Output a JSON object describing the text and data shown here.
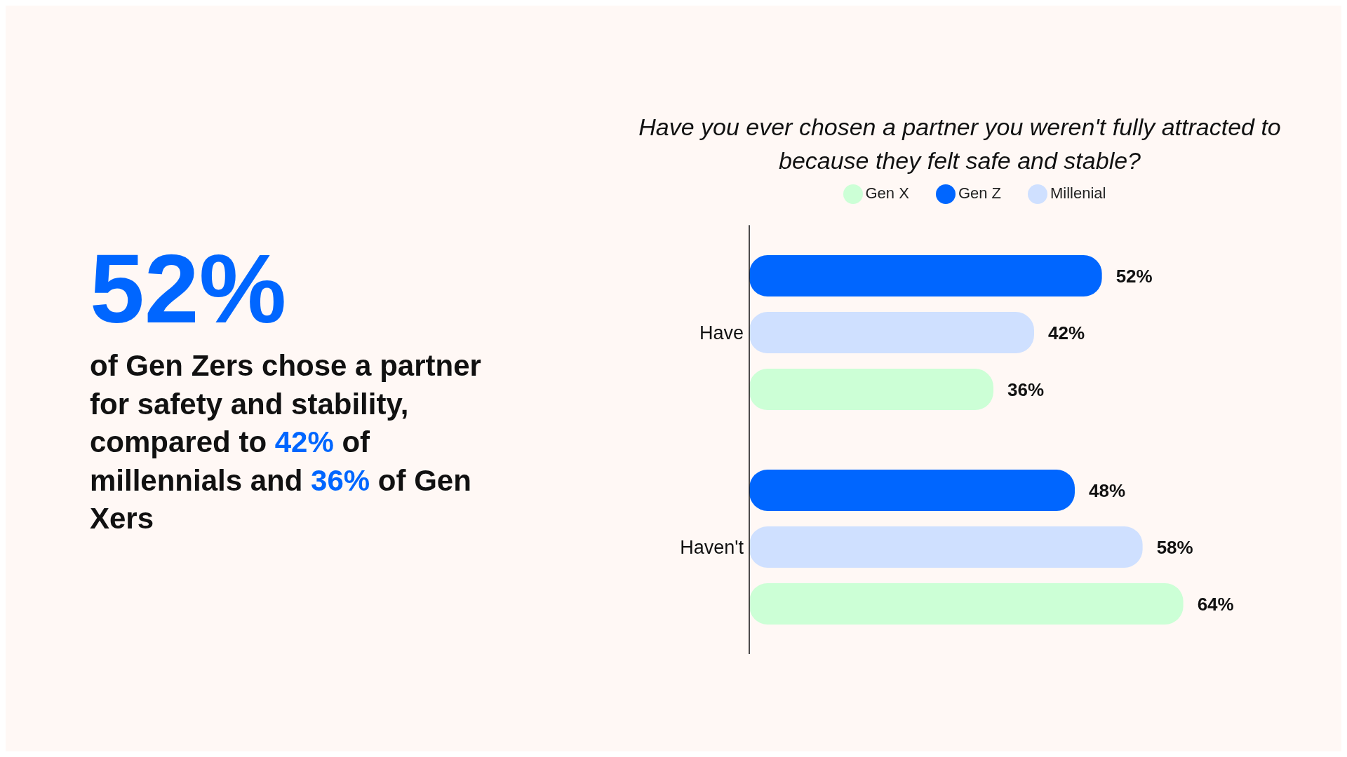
{
  "chart_data": [
    {
      "type": "other",
      "title": "52%",
      "annotations": [
        "of Gen Zers chose a partner for safety and stability, compared to",
        "42%",
        "of millennials and",
        "36%",
        "of Gen Xers"
      ]
    },
    {
      "type": "bar",
      "orientation": "horizontal",
      "title": "Have you ever chosen a partner you weren't fully attracted to because they felt safe and stable?",
      "categories": [
        "Have",
        "Haven't"
      ],
      "series": [
        {
          "name": "Gen Z",
          "color": "#0066ff",
          "values": [
            52,
            48
          ],
          "value_labels": [
            "52%",
            "48%"
          ]
        },
        {
          "name": "Millenial",
          "color": "#cfe0ff",
          "values": [
            42,
            58
          ],
          "value_labels": [
            "42%",
            "58%"
          ]
        },
        {
          "name": "Gen X",
          "color": "#ccffd6",
          "values": [
            36,
            64
          ],
          "value_labels": [
            "36%",
            "64%"
          ]
        }
      ],
      "legend": "top",
      "grid": false,
      "tick_labels": "y"
    }
  ]
}
